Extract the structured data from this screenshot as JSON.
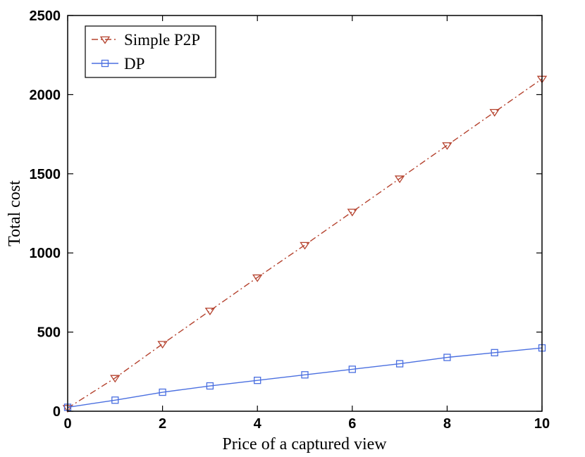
{
  "chart_data": {
    "type": "line",
    "xlabel": "Price of a captured view",
    "ylabel": "Total cost",
    "xlim": [
      0,
      10
    ],
    "ylim": [
      0,
      2500
    ],
    "xticks": [
      0,
      2,
      4,
      6,
      8,
      10
    ],
    "yticks": [
      0,
      500,
      1000,
      1500,
      2000,
      2500
    ],
    "grid": false,
    "legend": "top-left",
    "x": [
      0,
      1,
      2,
      3,
      4,
      5,
      6,
      7,
      8,
      9,
      10
    ],
    "series": [
      {
        "name": "Simple P2P",
        "values": [
          20,
          210,
          425,
          635,
          845,
          1050,
          1260,
          1470,
          1680,
          1890,
          2100
        ],
        "color": "#b5432f",
        "line_style": "dash-dot",
        "marker": "triangle-down"
      },
      {
        "name": "DP",
        "values": [
          25,
          70,
          120,
          160,
          195,
          230,
          265,
          300,
          340,
          370,
          400
        ],
        "color": "#4a6fe0",
        "line_style": "solid",
        "marker": "square"
      }
    ]
  }
}
